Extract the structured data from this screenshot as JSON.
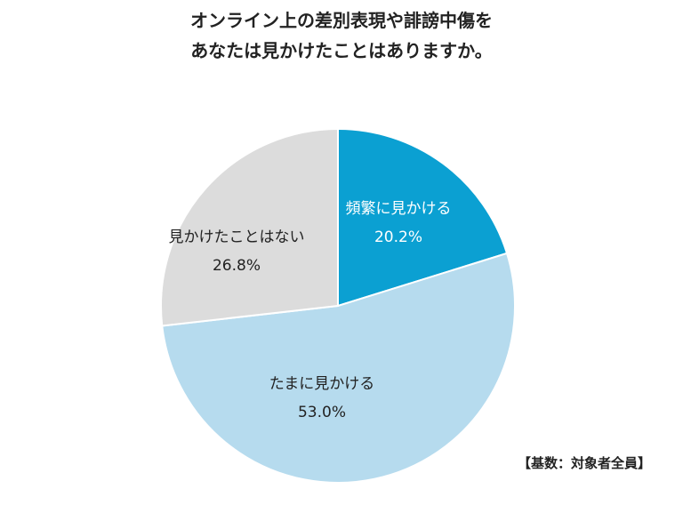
{
  "title": {
    "line1": "オンライン上の差別表現や誹謗中傷を",
    "line2": "あなたは見かけたことはありますか。"
  },
  "note": "【基数：対象者全員】",
  "colors": {
    "frequent": "#0ba0d2",
    "sometimes": "#b6dbee",
    "never": "#dcdcdc",
    "frequent_text": "#ffffff",
    "other_text": "#222222"
  },
  "chart_data": {
    "type": "pie",
    "slices": [
      {
        "label": "頻繁に見かける",
        "value": 20.2,
        "value_label": "20.2%"
      },
      {
        "label": "たまに見かける",
        "value": 53.0,
        "value_label": "53.0%"
      },
      {
        "label": "見かけたことはない",
        "value": 26.8,
        "value_label": "26.8%"
      }
    ],
    "start": "top",
    "direction": "clockwise"
  }
}
